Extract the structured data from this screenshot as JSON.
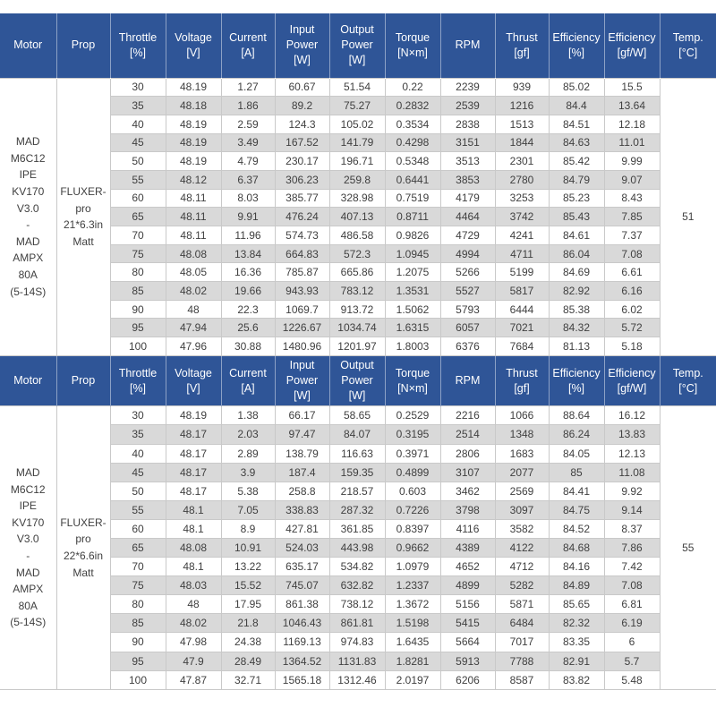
{
  "colors": {
    "header_bg": "#2F5597",
    "header_text": "#FFFFFF",
    "stripe": "#D9D9D9",
    "border": "#C9C9C9",
    "body_text": "#404040"
  },
  "table": {
    "columns": [
      "Motor",
      "Prop",
      "Throttle\n[%]",
      "Voltage\n[V]",
      "Current\n[A]",
      "Input\nPower\n[W]",
      "Output\nPower\n[W]",
      "Torque\n[N×m]",
      "RPM",
      "Thrust\n[gf]",
      "Efficiency\n[%]",
      "Efficiency\n[gf/W]",
      "Temp.\n[°C]"
    ],
    "column_keys": [
      "throttle",
      "voltage",
      "current",
      "input-power",
      "output-power",
      "torque",
      "rpm",
      "thrust",
      "efficiency-pct",
      "efficiency-gfw"
    ],
    "sections": [
      {
        "motor": "MAD\nM6C12 IPE\nKV170\nV3.0\n-\nMAD\nAMPX 80A\n(5-14S)",
        "prop": "FLUXER-\npro\n21*6.3in\nMatt",
        "temp": "51",
        "rows": [
          [
            "30",
            "48.19",
            "1.27",
            "60.67",
            "51.54",
            "0.22",
            "2239",
            "939",
            "85.02",
            "15.5"
          ],
          [
            "35",
            "48.18",
            "1.86",
            "89.2",
            "75.27",
            "0.2832",
            "2539",
            "1216",
            "84.4",
            "13.64"
          ],
          [
            "40",
            "48.19",
            "2.59",
            "124.3",
            "105.02",
            "0.3534",
            "2838",
            "1513",
            "84.51",
            "12.18"
          ],
          [
            "45",
            "48.19",
            "3.49",
            "167.52",
            "141.79",
            "0.4298",
            "3151",
            "1844",
            "84.63",
            "11.01"
          ],
          [
            "50",
            "48.19",
            "4.79",
            "230.17",
            "196.71",
            "0.5348",
            "3513",
            "2301",
            "85.42",
            "9.99"
          ],
          [
            "55",
            "48.12",
            "6.37",
            "306.23",
            "259.8",
            "0.6441",
            "3853",
            "2780",
            "84.79",
            "9.07"
          ],
          [
            "60",
            "48.11",
            "8.03",
            "385.77",
            "328.98",
            "0.7519",
            "4179",
            "3253",
            "85.23",
            "8.43"
          ],
          [
            "65",
            "48.11",
            "9.91",
            "476.24",
            "407.13",
            "0.8711",
            "4464",
            "3742",
            "85.43",
            "7.85"
          ],
          [
            "70",
            "48.11",
            "11.96",
            "574.73",
            "486.58",
            "0.9826",
            "4729",
            "4241",
            "84.61",
            "7.37"
          ],
          [
            "75",
            "48.08",
            "13.84",
            "664.83",
            "572.3",
            "1.0945",
            "4994",
            "4711",
            "86.04",
            "7.08"
          ],
          [
            "80",
            "48.05",
            "16.36",
            "785.87",
            "665.86",
            "1.2075",
            "5266",
            "5199",
            "84.69",
            "6.61"
          ],
          [
            "85",
            "48.02",
            "19.66",
            "943.93",
            "783.12",
            "1.3531",
            "5527",
            "5817",
            "82.92",
            "6.16"
          ],
          [
            "90",
            "48",
            "22.3",
            "1069.7",
            "913.72",
            "1.5062",
            "5793",
            "6444",
            "85.38",
            "6.02"
          ],
          [
            "95",
            "47.94",
            "25.6",
            "1226.67",
            "1034.74",
            "1.6315",
            "6057",
            "7021",
            "84.32",
            "5.72"
          ],
          [
            "100",
            "47.96",
            "30.88",
            "1480.96",
            "1201.97",
            "1.8003",
            "6376",
            "7684",
            "81.13",
            "5.18"
          ]
        ]
      },
      {
        "motor": "MAD\nM6C12 IPE\nKV170\nV3.0\n-\nMAD\nAMPX 80A\n(5-14S)",
        "prop": "FLUXER-\npro\n22*6.6in\nMatt",
        "temp": "55",
        "rows": [
          [
            "30",
            "48.19",
            "1.38",
            "66.17",
            "58.65",
            "0.2529",
            "2216",
            "1066",
            "88.64",
            "16.12"
          ],
          [
            "35",
            "48.17",
            "2.03",
            "97.47",
            "84.07",
            "0.3195",
            "2514",
            "1348",
            "86.24",
            "13.83"
          ],
          [
            "40",
            "48.17",
            "2.89",
            "138.79",
            "116.63",
            "0.3971",
            "2806",
            "1683",
            "84.05",
            "12.13"
          ],
          [
            "45",
            "48.17",
            "3.9",
            "187.4",
            "159.35",
            "0.4899",
            "3107",
            "2077",
            "85",
            "11.08"
          ],
          [
            "50",
            "48.17",
            "5.38",
            "258.8",
            "218.57",
            "0.603",
            "3462",
            "2569",
            "84.41",
            "9.92"
          ],
          [
            "55",
            "48.1",
            "7.05",
            "338.83",
            "287.32",
            "0.7226",
            "3798",
            "3097",
            "84.75",
            "9.14"
          ],
          [
            "60",
            "48.1",
            "8.9",
            "427.81",
            "361.85",
            "0.8397",
            "4116",
            "3582",
            "84.52",
            "8.37"
          ],
          [
            "65",
            "48.08",
            "10.91",
            "524.03",
            "443.98",
            "0.9662",
            "4389",
            "4122",
            "84.68",
            "7.86"
          ],
          [
            "70",
            "48.1",
            "13.22",
            "635.17",
            "534.82",
            "1.0979",
            "4652",
            "4712",
            "84.16",
            "7.42"
          ],
          [
            "75",
            "48.03",
            "15.52",
            "745.07",
            "632.82",
            "1.2337",
            "4899",
            "5282",
            "84.89",
            "7.08"
          ],
          [
            "80",
            "48",
            "17.95",
            "861.38",
            "738.12",
            "1.3672",
            "5156",
            "5871",
            "85.65",
            "6.81"
          ],
          [
            "85",
            "48.02",
            "21.8",
            "1046.43",
            "861.81",
            "1.5198",
            "5415",
            "6484",
            "82.32",
            "6.19"
          ],
          [
            "90",
            "47.98",
            "24.38",
            "1169.13",
            "974.83",
            "1.6435",
            "5664",
            "7017",
            "83.35",
            "6"
          ],
          [
            "95",
            "47.9",
            "28.49",
            "1364.52",
            "1131.83",
            "1.8281",
            "5913",
            "7788",
            "82.91",
            "5.7"
          ],
          [
            "100",
            "47.87",
            "32.71",
            "1565.18",
            "1312.46",
            "2.0197",
            "6206",
            "8587",
            "83.82",
            "5.48"
          ]
        ]
      }
    ]
  }
}
